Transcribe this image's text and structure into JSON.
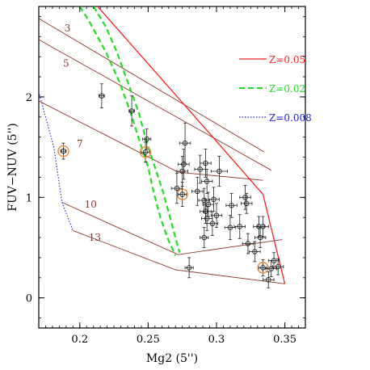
{
  "chart_data": {
    "type": "scatter",
    "xlabel": "Mg2 (5'')",
    "ylabel": "FUV−NUV (5'')",
    "xlim": [
      0.17,
      0.365
    ],
    "ylim": [
      -0.3,
      2.9
    ],
    "xticks": [
      {
        "value": 0.2,
        "label": "0.2"
      },
      {
        "value": 0.25,
        "label": "0.25"
      },
      {
        "value": 0.3,
        "label": "0.3"
      },
      {
        "value": 0.35,
        "label": "0.35"
      }
    ],
    "yticks": [
      {
        "value": 0,
        "label": "0"
      },
      {
        "value": 1,
        "label": "1"
      },
      {
        "value": 2,
        "label": "2"
      }
    ],
    "legend": [
      {
        "label": "Z=0.05",
        "color": "#ff2020",
        "dash": "solid"
      },
      {
        "label": "Z=0.02",
        "color": "#22dd22",
        "dash": "dashed"
      },
      {
        "label": "Z=0.008",
        "color": "#2020dd",
        "dash": "dotted"
      }
    ],
    "model_lines": [
      {
        "color": "#ff2020",
        "dash": "solid",
        "x": [
          0.213,
          0.296,
          0.334,
          0.35
        ],
        "y": [
          2.9,
          1.62,
          1.03,
          0.14
        ]
      },
      {
        "color": "#22dd22",
        "dash": "dashed",
        "x": [
          0.2,
          0.207,
          0.219,
          0.229,
          0.237,
          0.244,
          0.25,
          0.254,
          0.259,
          0.264,
          0.27
        ],
        "y": [
          2.9,
          2.75,
          2.45,
          2.15,
          1.85,
          1.55,
          1.3,
          1.05,
          0.8,
          0.6,
          0.42
        ]
      },
      {
        "color": "#22dd22",
        "dash": "dashed",
        "x": [
          0.21,
          0.219,
          0.227,
          0.235,
          0.243,
          0.249,
          0.255,
          0.261,
          0.266,
          0.27,
          0.273
        ],
        "y": [
          2.9,
          2.7,
          2.45,
          2.15,
          1.85,
          1.55,
          1.3,
          1.05,
          0.8,
          0.6,
          0.45
        ]
      },
      {
        "color": "#2020dd",
        "dash": "dotted",
        "x": [
          0.17,
          0.181,
          0.187,
          0.195
        ],
        "y": [
          2.05,
          1.5,
          0.95,
          0.67
        ]
      }
    ],
    "age_lines": [
      {
        "label": "3",
        "label_x": 0.191,
        "label_y": 2.65,
        "x": [
          0.17,
          0.335
        ],
        "y": [
          2.78,
          1.45
        ]
      },
      {
        "label": "5",
        "label_x": 0.19,
        "label_y": 2.3,
        "x": [
          0.17,
          0.34
        ],
        "y": [
          2.57,
          1.27
        ]
      },
      {
        "label": "7",
        "label_x": 0.2,
        "label_y": 1.5,
        "x": [
          0.17,
          0.272,
          0.334
        ],
        "y": [
          1.96,
          1.25,
          1.17
        ]
      },
      {
        "label": "10",
        "label_x": 0.208,
        "label_y": 0.9,
        "x": [
          0.187,
          0.272,
          0.348
        ],
        "y": [
          0.95,
          0.43,
          0.58
        ]
      },
      {
        "label": "13",
        "label_x": 0.211,
        "label_y": 0.57,
        "x": [
          0.195,
          0.27,
          0.35
        ],
        "y": [
          0.67,
          0.28,
          0.14
        ]
      }
    ],
    "points": [
      {
        "x": 0.216,
        "y": 2.01,
        "xerr": 0.002,
        "yerr": 0.12,
        "ring": false
      },
      {
        "x": 0.238,
        "y": 1.86,
        "xerr": 0.002,
        "yerr": 0.15,
        "ring": false
      },
      {
        "x": 0.188,
        "y": 1.46,
        "xerr": 0.002,
        "yerr": 0.08,
        "ring": true
      },
      {
        "x": 0.248,
        "y": 1.45,
        "xerr": 0.003,
        "yerr": 0.1,
        "ring": true
      },
      {
        "x": 0.249,
        "y": 1.58,
        "xerr": 0.003,
        "yerr": 0.1,
        "ring": false
      },
      {
        "x": 0.275,
        "y": 1.03,
        "xerr": 0.003,
        "yerr": 0.12,
        "ring": true
      },
      {
        "x": 0.334,
        "y": 0.3,
        "xerr": 0.003,
        "yerr": 0.08,
        "ring": true
      },
      {
        "x": 0.277,
        "y": 1.54,
        "xerr": 0.004,
        "yerr": 0.2,
        "ring": false
      },
      {
        "x": 0.276,
        "y": 1.33,
        "xerr": 0.004,
        "yerr": 0.15,
        "ring": false
      },
      {
        "x": 0.275,
        "y": 1.26,
        "xerr": 0.004,
        "yerr": 0.15,
        "ring": false
      },
      {
        "x": 0.271,
        "y": 1.09,
        "xerr": 0.004,
        "yerr": 0.15,
        "ring": false
      },
      {
        "x": 0.286,
        "y": 1.06,
        "xerr": 0.004,
        "yerr": 0.14,
        "ring": false
      },
      {
        "x": 0.288,
        "y": 1.28,
        "xerr": 0.004,
        "yerr": 0.14,
        "ring": false
      },
      {
        "x": 0.292,
        "y": 1.34,
        "xerr": 0.004,
        "yerr": 0.14,
        "ring": false
      },
      {
        "x": 0.293,
        "y": 1.16,
        "xerr": 0.004,
        "yerr": 0.12,
        "ring": false
      },
      {
        "x": 0.291,
        "y": 0.97,
        "xerr": 0.004,
        "yerr": 0.12,
        "ring": false
      },
      {
        "x": 0.294,
        "y": 0.93,
        "xerr": 0.004,
        "yerr": 0.12,
        "ring": false
      },
      {
        "x": 0.292,
        "y": 0.86,
        "xerr": 0.004,
        "yerr": 0.12,
        "ring": false
      },
      {
        "x": 0.293,
        "y": 0.79,
        "xerr": 0.004,
        "yerr": 0.12,
        "ring": false
      },
      {
        "x": 0.291,
        "y": 0.6,
        "xerr": 0.003,
        "yerr": 0.1,
        "ring": false
      },
      {
        "x": 0.297,
        "y": 0.74,
        "xerr": 0.004,
        "yerr": 0.12,
        "ring": false
      },
      {
        "x": 0.302,
        "y": 1.26,
        "xerr": 0.006,
        "yerr": 0.15,
        "ring": false
      },
      {
        "x": 0.298,
        "y": 0.98,
        "xerr": 0.004,
        "yerr": 0.12,
        "ring": false
      },
      {
        "x": 0.3,
        "y": 0.82,
        "xerr": 0.004,
        "yerr": 0.12,
        "ring": false
      },
      {
        "x": 0.31,
        "y": 0.7,
        "xerr": 0.004,
        "yerr": 0.12,
        "ring": false
      },
      {
        "x": 0.311,
        "y": 0.92,
        "xerr": 0.004,
        "yerr": 0.12,
        "ring": false
      },
      {
        "x": 0.317,
        "y": 0.71,
        "xerr": 0.004,
        "yerr": 0.12,
        "ring": false
      },
      {
        "x": 0.321,
        "y": 1.0,
        "xerr": 0.004,
        "yerr": 0.12,
        "ring": false
      },
      {
        "x": 0.322,
        "y": 0.94,
        "xerr": 0.004,
        "yerr": 0.1,
        "ring": false
      },
      {
        "x": 0.323,
        "y": 0.54,
        "xerr": 0.004,
        "yerr": 0.1,
        "ring": false
      },
      {
        "x": 0.328,
        "y": 0.46,
        "xerr": 0.004,
        "yerr": 0.1,
        "ring": false
      },
      {
        "x": 0.331,
        "y": 0.71,
        "xerr": 0.004,
        "yerr": 0.1,
        "ring": false
      },
      {
        "x": 0.332,
        "y": 0.6,
        "xerr": 0.004,
        "yerr": 0.1,
        "ring": false
      },
      {
        "x": 0.334,
        "y": 0.71,
        "xerr": 0.004,
        "yerr": 0.1,
        "ring": false
      },
      {
        "x": 0.338,
        "y": 0.18,
        "xerr": 0.004,
        "yerr": 0.08,
        "ring": false
      },
      {
        "x": 0.34,
        "y": 0.29,
        "xerr": 0.004,
        "yerr": 0.08,
        "ring": false
      },
      {
        "x": 0.342,
        "y": 0.37,
        "xerr": 0.004,
        "yerr": 0.08,
        "ring": false
      },
      {
        "x": 0.345,
        "y": 0.31,
        "xerr": 0.004,
        "yerr": 0.08,
        "ring": false
      },
      {
        "x": 0.28,
        "y": 0.3,
        "xerr": 0.003,
        "yerr": 0.1,
        "ring": false
      }
    ]
  }
}
